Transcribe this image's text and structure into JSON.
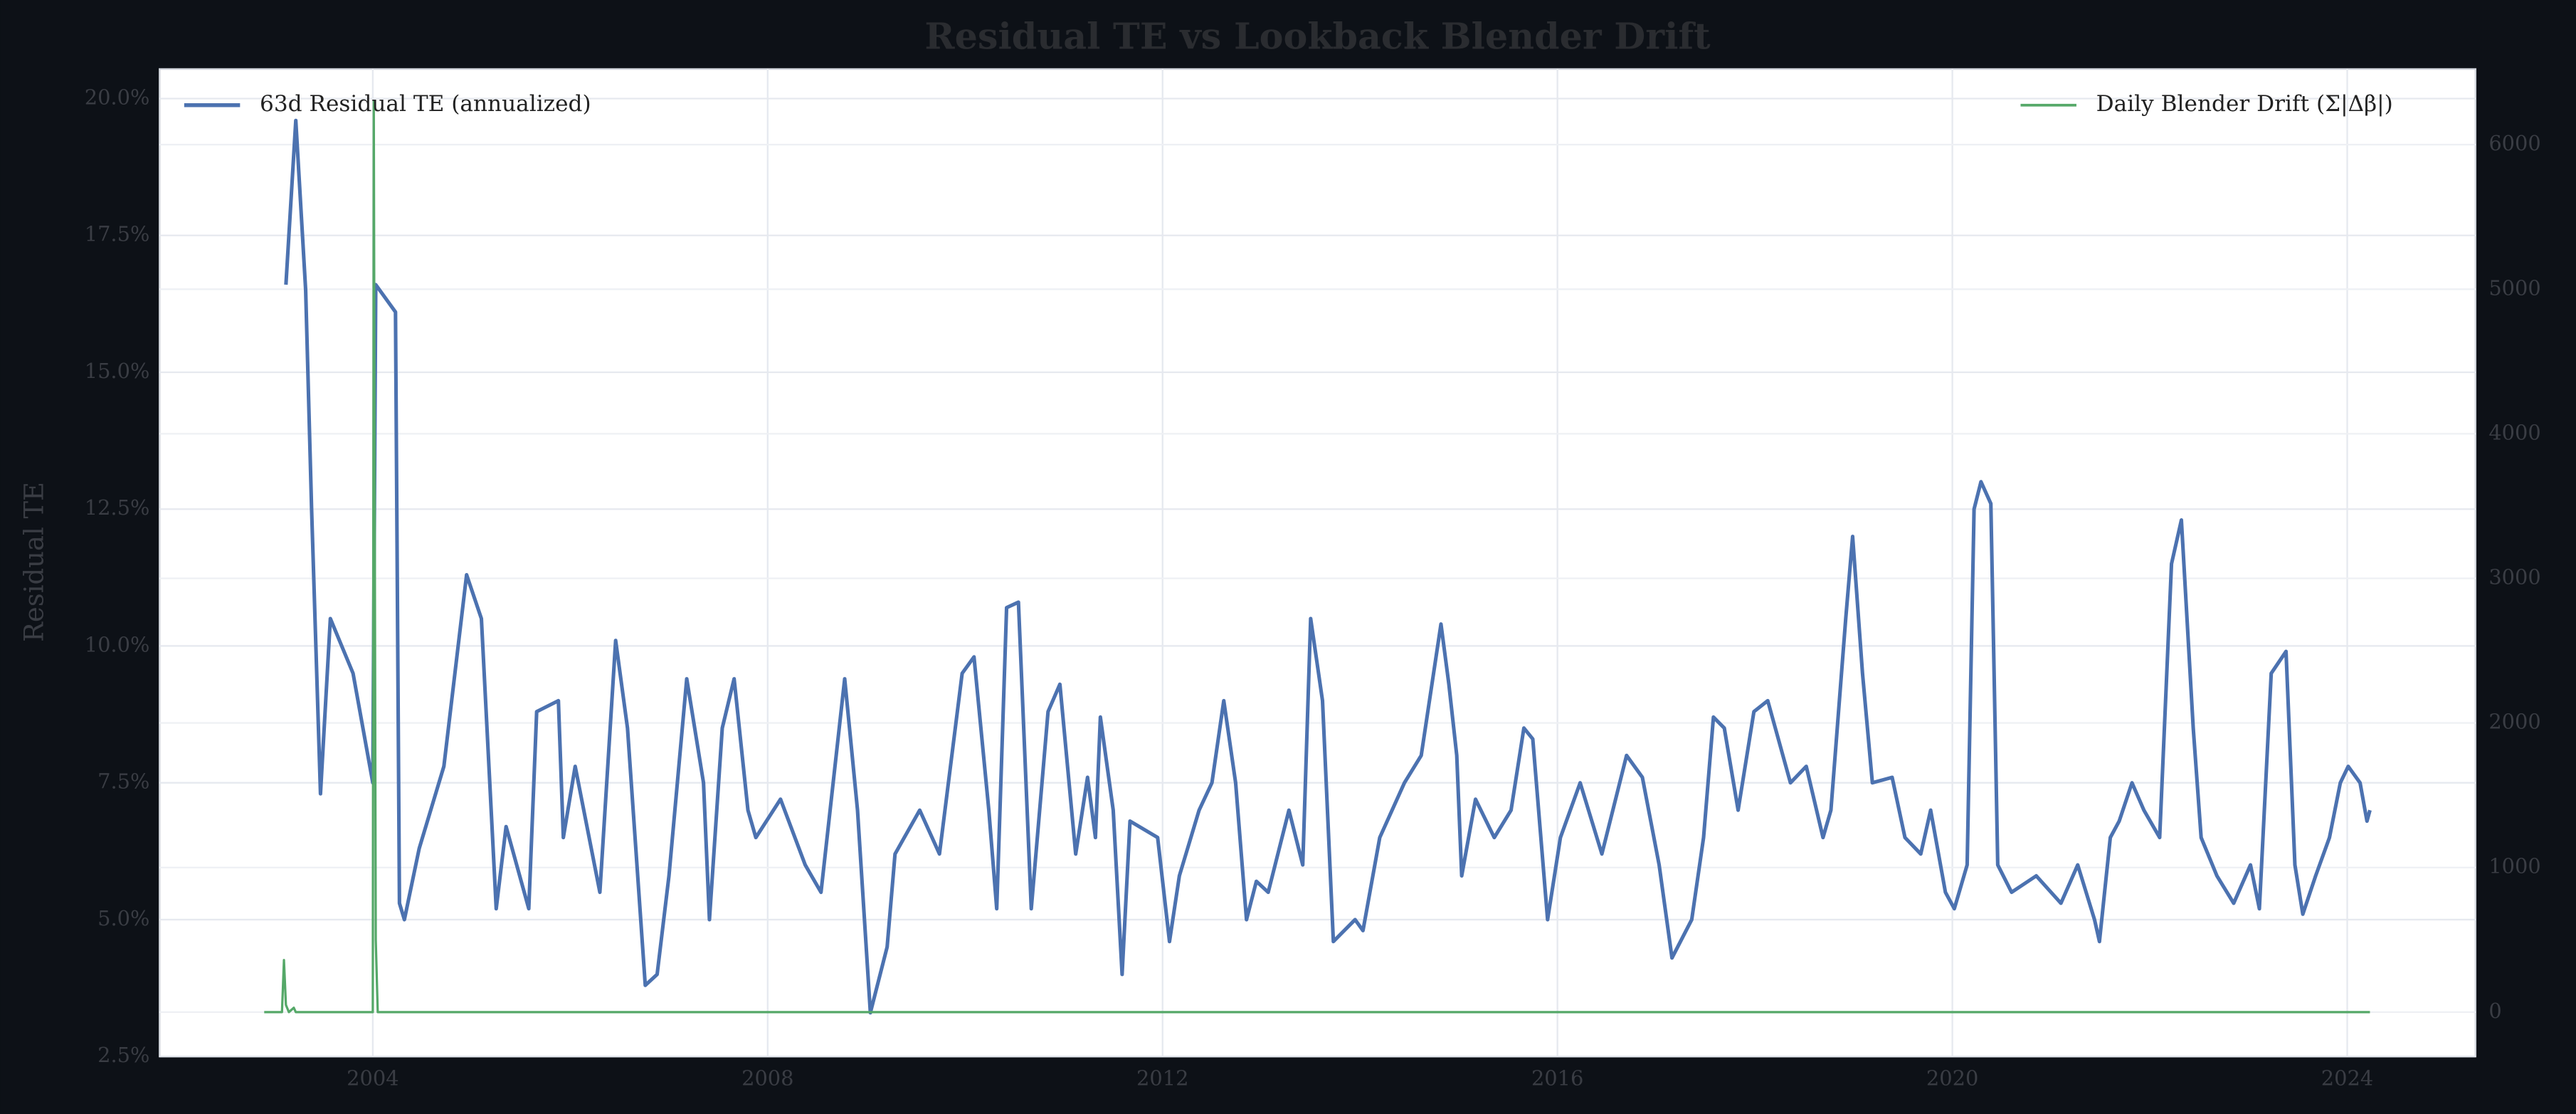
{
  "chart_data": {
    "type": "line",
    "title": "Residual TE vs Lookback Blender Drift",
    "ylabel": "Residual TE",
    "xlim": [
      2001.84,
      2025.3
    ],
    "xticks": [
      2004,
      2008,
      2012,
      2016,
      2020,
      2024
    ],
    "ylim": [
      2.5,
      20.54
    ],
    "yticks": [
      {
        "value": 2.5,
        "label": "2.5%"
      },
      {
        "value": 5,
        "label": "5.0%"
      },
      {
        "value": 7.5,
        "label": "7.5%"
      },
      {
        "value": 10,
        "label": "10.0%"
      },
      {
        "value": 12.5,
        "label": "12.5%"
      },
      {
        "value": 15,
        "label": "15.0%"
      },
      {
        "value": 17.5,
        "label": "17.5%"
      },
      {
        "value": 20,
        "label": "20.0%"
      }
    ],
    "y2lim": [
      -307,
      6523
    ],
    "y2ticks": [
      0,
      1000,
      2000,
      3000,
      4000,
      5000,
      6000
    ],
    "grid": true,
    "series": [
      {
        "name": "63d Residual TE (annualized)",
        "color": "#4c72b0",
        "legend": "upper left",
        "x": [
          2003.12,
          2003.22,
          2003.32,
          2003.38,
          2003.47,
          2003.57,
          2003.8,
          2004.0,
          2004.03,
          2004.23,
          2004.27,
          2004.32,
          2004.47,
          2004.72,
          2004.95,
          2005.1,
          2005.25,
          2005.35,
          2005.58,
          2005.66,
          2005.88,
          2005.93,
          2006.05,
          2006.3,
          2006.46,
          2006.58,
          2006.76,
          2006.88,
          2007.0,
          2007.18,
          2007.35,
          2007.41,
          2007.54,
          2007.66,
          2007.8,
          2007.88,
          2008.13,
          2008.38,
          2008.54,
          2008.78,
          2008.91,
          2009.04,
          2009.21,
          2009.29,
          2009.54,
          2009.74,
          2009.97,
          2010.09,
          2010.24,
          2010.32,
          2010.42,
          2010.54,
          2010.67,
          2010.84,
          2010.96,
          2011.12,
          2011.24,
          2011.32,
          2011.37,
          2011.5,
          2011.59,
          2011.67,
          2011.95,
          2012.07,
          2012.17,
          2012.37,
          2012.5,
          2012.62,
          2012.74,
          2012.85,
          2012.95,
          2013.07,
          2013.28,
          2013.42,
          2013.5,
          2013.62,
          2013.73,
          2013.95,
          2014.03,
          2014.2,
          2014.45,
          2014.62,
          2014.82,
          2014.9,
          2014.98,
          2015.03,
          2015.17,
          2015.36,
          2015.53,
          2015.66,
          2015.75,
          2015.9,
          2016.03,
          2016.23,
          2016.45,
          2016.7,
          2016.86,
          2017.03,
          2017.16,
          2017.36,
          2017.48,
          2017.58,
          2017.69,
          2017.83,
          2017.99,
          2018.13,
          2018.36,
          2018.52,
          2018.69,
          2018.77,
          2018.92,
          2018.99,
          2019.09,
          2019.19,
          2019.39,
          2019.52,
          2019.68,
          2019.78,
          2019.93,
          2020.02,
          2020.15,
          2020.22,
          2020.29,
          2020.39,
          2020.46,
          2020.6,
          2020.85,
          2021.1,
          2021.27,
          2021.44,
          2021.49,
          2021.6,
          2021.69,
          2021.82,
          2021.94,
          2022.1,
          2022.22,
          2022.32,
          2022.44,
          2022.52,
          2022.68,
          2022.85,
          2023.02,
          2023.11,
          2023.23,
          2023.38,
          2023.47,
          2023.55,
          2023.68,
          2023.82,
          2023.93,
          2024.01,
          2024.13,
          2024.2,
          2024.23
        ],
        "values": [
          16.6,
          19.6,
          16.5,
          12.5,
          7.3,
          10.5,
          9.5,
          7.5,
          16.6,
          16.1,
          5.3,
          5.0,
          6.3,
          7.8,
          11.3,
          10.5,
          5.2,
          6.7,
          5.2,
          8.8,
          9.0,
          6.5,
          7.8,
          5.5,
          10.1,
          8.5,
          3.8,
          4.0,
          5.8,
          9.4,
          7.5,
          5.0,
          8.5,
          9.4,
          7.0,
          6.5,
          7.2,
          6.0,
          5.5,
          9.4,
          7.0,
          3.3,
          4.5,
          6.2,
          7.0,
          6.2,
          9.5,
          9.8,
          7.0,
          5.2,
          10.7,
          10.8,
          5.2,
          8.8,
          9.3,
          6.2,
          7.6,
          6.5,
          8.7,
          7.0,
          4.0,
          6.8,
          6.5,
          4.6,
          5.8,
          7.0,
          7.5,
          9.0,
          7.5,
          5.0,
          5.7,
          5.5,
          7.0,
          6.0,
          10.5,
          9.0,
          4.6,
          5.0,
          4.8,
          6.5,
          7.5,
          8.0,
          10.4,
          9.3,
          8.0,
          5.8,
          7.2,
          6.5,
          7.0,
          8.5,
          8.3,
          5.0,
          6.5,
          7.5,
          6.2,
          8.0,
          7.6,
          6.0,
          4.3,
          5.0,
          6.5,
          8.7,
          8.5,
          7.0,
          8.8,
          9.0,
          7.5,
          7.8,
          6.5,
          7.0,
          10.5,
          12.0,
          9.5,
          7.5,
          7.6,
          6.5,
          6.2,
          7.0,
          5.5,
          5.2,
          6.0,
          12.5,
          13.0,
          12.6,
          6.0,
          5.5,
          5.8,
          5.3,
          6.0,
          5.0,
          4.6,
          6.5,
          6.8,
          7.5,
          7.0,
          6.5,
          11.5,
          12.3,
          8.5,
          6.5,
          5.8,
          5.3,
          6.0,
          5.2,
          9.5,
          9.9,
          6.0,
          5.1,
          5.8,
          6.5,
          7.5,
          7.8,
          7.5,
          6.8,
          7.0
        ]
      },
      {
        "name": "Daily Blender Drift (Σ|Δβ|)",
        "color": "#55a868",
        "axis": "y2",
        "legend": "upper right",
        "x": [
          2002.9,
          2003.08,
          2003.1,
          2003.12,
          2003.15,
          2003.2,
          2003.22,
          2004.0,
          2004.01,
          2004.03,
          2004.05,
          2024.23
        ],
        "values": [
          0,
          0,
          360,
          50,
          0,
          30,
          0,
          0,
          6300,
          500,
          0,
          0
        ]
      }
    ]
  }
}
